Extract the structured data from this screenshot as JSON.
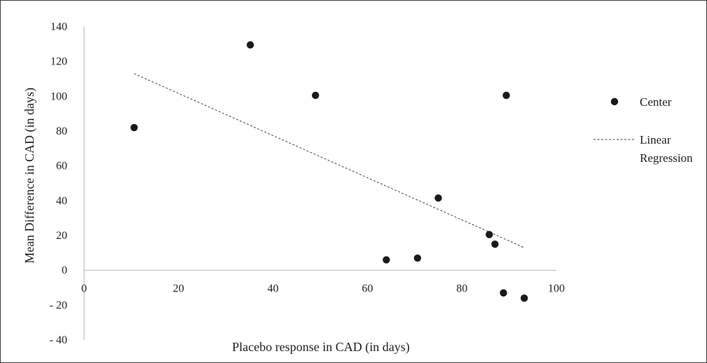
{
  "chart_data": {
    "type": "scatter",
    "title": "",
    "xlabel": "Placebo response in CAD (in days)",
    "ylabel": "Mean Difference in CAD (in days)",
    "xlim": [
      0,
      100
    ],
    "ylim": [
      -40,
      140
    ],
    "xticks": [
      0,
      20,
      40,
      60,
      80,
      100
    ],
    "xtick_labels": [
      "0",
      "20",
      "40",
      "60",
      "80",
      "100"
    ],
    "yticks": [
      140,
      120,
      100,
      80,
      60,
      40,
      20,
      0,
      -20,
      -40
    ],
    "ytick_labels": [
      "140",
      "120",
      "100",
      "80",
      "60",
      "40",
      "20",
      "0",
      "- 20",
      "- 40"
    ],
    "grid": false,
    "legend_position": "right",
    "series": [
      {
        "name": "Center",
        "kind": "scatter",
        "color": "#1a1a1a",
        "points": [
          {
            "x": 10.6,
            "y": 82
          },
          {
            "x": 35.2,
            "y": 129.5
          },
          {
            "x": 49.0,
            "y": 100.5
          },
          {
            "x": 64.0,
            "y": 6
          },
          {
            "x": 70.6,
            "y": 7
          },
          {
            "x": 75.0,
            "y": 41.5
          },
          {
            "x": 85.8,
            "y": 20.5
          },
          {
            "x": 87.0,
            "y": 15
          },
          {
            "x": 88.8,
            "y": -13
          },
          {
            "x": 89.4,
            "y": 100.5
          },
          {
            "x": 93.2,
            "y": -16
          }
        ]
      },
      {
        "name": "Linear Regression",
        "legend_lines": [
          "Linear",
          "Regression"
        ],
        "kind": "trendline",
        "style": "dashed",
        "color": "#444444",
        "points": [
          {
            "x": 10.6,
            "y": 113
          },
          {
            "x": 93.2,
            "y": 13
          }
        ]
      }
    ]
  }
}
